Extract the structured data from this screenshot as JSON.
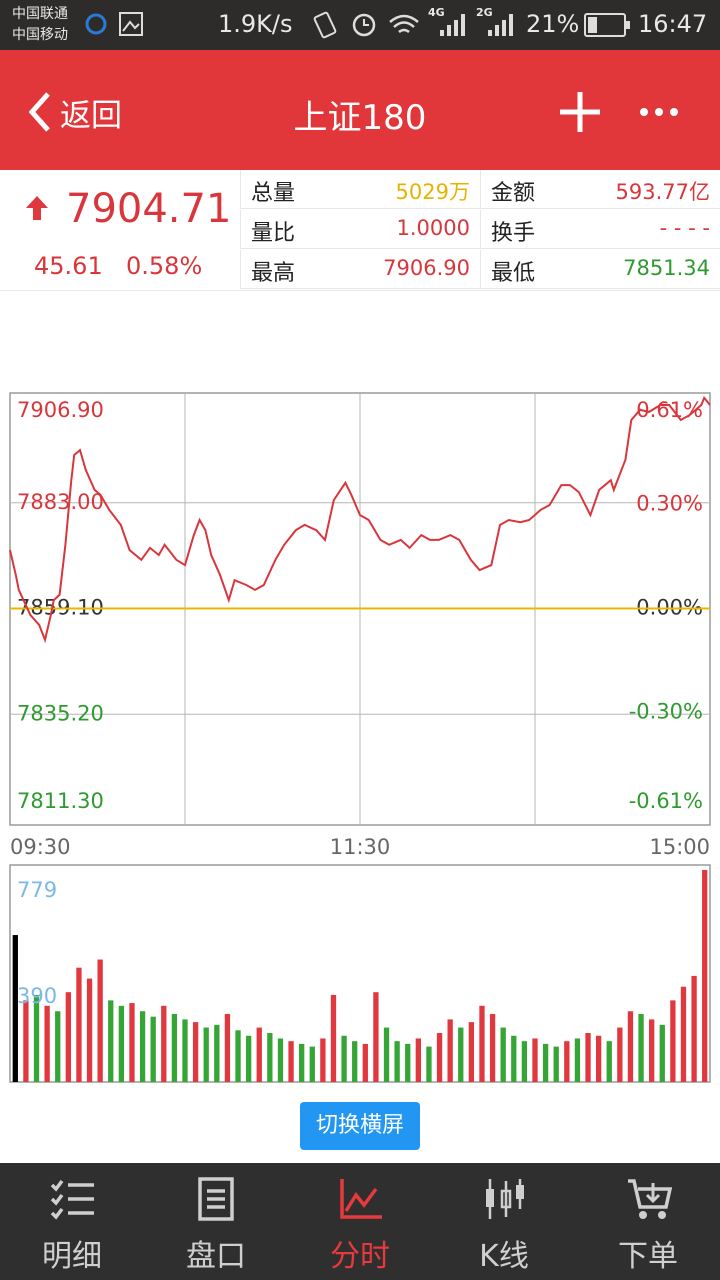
{
  "status_bar": {
    "carrier_1": "中国联通",
    "carrier_2": "中国移动",
    "speed": "1.9K/s",
    "net_1": "4G",
    "net_2": "2G",
    "battery": "21%",
    "time": "16:47"
  },
  "header": {
    "back": "返回",
    "title": "上证180"
  },
  "quote": {
    "price": "7904.71",
    "change": "45.61",
    "change_pct": "0.58%",
    "stats": [
      {
        "label": "总量",
        "value": "5029万"
      },
      {
        "label": "金额",
        "value": "593.77亿"
      },
      {
        "label": "量比",
        "value": "1.0000"
      },
      {
        "label": "换手",
        "value": "- - - -"
      },
      {
        "label": "最高",
        "value": "7906.90"
      },
      {
        "label": "最低",
        "value": "7851.34"
      }
    ]
  },
  "chart_data": [
    {
      "type": "line",
      "x": [
        0,
        2,
        3,
        7,
        10,
        12,
        14,
        15,
        17,
        19,
        21,
        22,
        24,
        26,
        29,
        31,
        34,
        38,
        41,
        45,
        48,
        51,
        53,
        57,
        60,
        63,
        65,
        67,
        69,
        72,
        75,
        77,
        81,
        84,
        87,
        91,
        94,
        98,
        101,
        105,
        108,
        111,
        115,
        117,
        120,
        123,
        127,
        130,
        134,
        137,
        141,
        144,
        147,
        151,
        154,
        158,
        161,
        165,
        168,
        171,
        175,
        178,
        182,
        185,
        189,
        192,
        195,
        199,
        202,
        206,
        207,
        211,
        213,
        216,
        219,
        223,
        226,
        230,
        233,
        237,
        238,
        240
      ],
      "series": [
        {
          "color": "#d9363b",
          "values": [
            7872.3,
            7866.7,
            7863.3,
            7857.6,
            7855.4,
            7852.0,
            7857.6,
            7861.0,
            7862.2,
            7873.5,
            7888.1,
            7893.8,
            7894.9,
            7890.4,
            7885.9,
            7884.8,
            7881.4,
            7878.0,
            7872.3,
            7870.1,
            7872.8,
            7871.2,
            7873.5,
            7870.1,
            7868.9,
            7875.7,
            7879.1,
            7876.8,
            7871.2,
            7866.7,
            7861.0,
            7865.5,
            7864.4,
            7863.3,
            7864.4,
            7870.1,
            7873.5,
            7876.8,
            7878.0,
            7876.8,
            7874.6,
            7883.6,
            7887.5,
            7884.8,
            7880.2,
            7879.1,
            7874.6,
            7873.5,
            7874.6,
            7872.8,
            7875.7,
            7874.6,
            7874.6,
            7875.7,
            7874.6,
            7870.1,
            7867.8,
            7868.9,
            7878.0,
            7879.1,
            7878.6,
            7879.1,
            7881.4,
            7882.5,
            7887.0,
            7887.0,
            7885.4,
            7880.2,
            7885.9,
            7888.1,
            7885.9,
            7892.7,
            7901.7,
            7904.0,
            7903.5,
            7905.1,
            7905.1,
            7901.7,
            7902.8,
            7905.1,
            7906.7,
            7905.1
          ]
        }
      ],
      "xlim": [
        0,
        240
      ],
      "xticks": [
        {
          "value": 0,
          "label": "09:30"
        },
        {
          "value": 120,
          "label": "11:30"
        },
        {
          "value": 240,
          "label": "15:00"
        }
      ],
      "xgrid": [
        60,
        120,
        180
      ],
      "ylim": [
        7811.3,
        7906.9
      ],
      "yticks": [
        {
          "value": 7906.9,
          "label": "7906.90"
        },
        {
          "value": 7883,
          "label": "7883.00"
        },
        {
          "value": 7859.1,
          "label": "7859.10"
        },
        {
          "value": 7835.2,
          "label": "7835.20"
        },
        {
          "value": 7811.3,
          "label": "7811.30"
        }
      ],
      "y2lim": [
        -0.61,
        0.61
      ],
      "y2ticks": [
        {
          "value": 0.61,
          "label": "0.61%"
        },
        {
          "value": 0.3,
          "label": "0.30%"
        },
        {
          "value": 0,
          "label": "0.00%"
        },
        {
          "value": -0.3,
          "label": "-0.30%"
        },
        {
          "value": -0.61,
          "label": "-0.61%"
        }
      ],
      "reference": {
        "value": 7859.1,
        "color": "#e6b800"
      },
      "grid": true
    },
    {
      "type": "bar",
      "values": [
        540,
        300,
        320,
        280,
        260,
        330,
        420,
        380,
        450,
        300,
        280,
        290,
        260,
        240,
        280,
        250,
        230,
        220,
        200,
        210,
        250,
        190,
        170,
        200,
        180,
        160,
        150,
        140,
        130,
        160,
        320,
        170,
        150,
        140,
        330,
        200,
        150,
        140,
        160,
        130,
        180,
        230,
        200,
        220,
        280,
        250,
        200,
        170,
        150,
        160,
        140,
        130,
        150,
        160,
        180,
        170,
        150,
        200,
        260,
        250,
        230,
        210,
        300,
        350,
        390,
        779
      ],
      "colors": [
        "#000000",
        "#e0383e",
        "#35a635",
        "#e0383e",
        "#35a635",
        "#e0383e",
        "#e0383e",
        "#e0383e",
        "#e0383e",
        "#35a635",
        "#35a635",
        "#e0383e",
        "#35a635",
        "#35a635",
        "#e0383e",
        "#35a635",
        "#35a635",
        "#e0383e",
        "#35a635",
        "#35a635",
        "#e0383e",
        "#35a635",
        "#35a635",
        "#e0383e",
        "#35a635",
        "#35a635",
        "#e0383e",
        "#35a635",
        "#35a635",
        "#e0383e",
        "#e0383e",
        "#35a635",
        "#35a635",
        "#e0383e",
        "#e0383e",
        "#35a635",
        "#35a635",
        "#35a635",
        "#e0383e",
        "#35a635",
        "#e0383e",
        "#e0383e",
        "#35a635",
        "#e0383e",
        "#e0383e",
        "#e0383e",
        "#35a635",
        "#35a635",
        "#35a635",
        "#e0383e",
        "#35a635",
        "#35a635",
        "#e0383e",
        "#35a635",
        "#e0383e",
        "#e0383e",
        "#35a635",
        "#e0383e",
        "#e0383e",
        "#35a635",
        "#e0383e",
        "#35a635",
        "#e0383e",
        "#e0383e",
        "#e0383e",
        "#e0383e"
      ],
      "ylim": [
        0,
        779
      ],
      "yticks": [
        779,
        390
      ]
    }
  ],
  "button": "切换横屏",
  "nav": [
    {
      "label": "明细",
      "active": false
    },
    {
      "label": "盘口",
      "active": false
    },
    {
      "label": "分时",
      "active": true
    },
    {
      "label": "K线",
      "active": false
    },
    {
      "label": "下单",
      "active": false
    }
  ]
}
